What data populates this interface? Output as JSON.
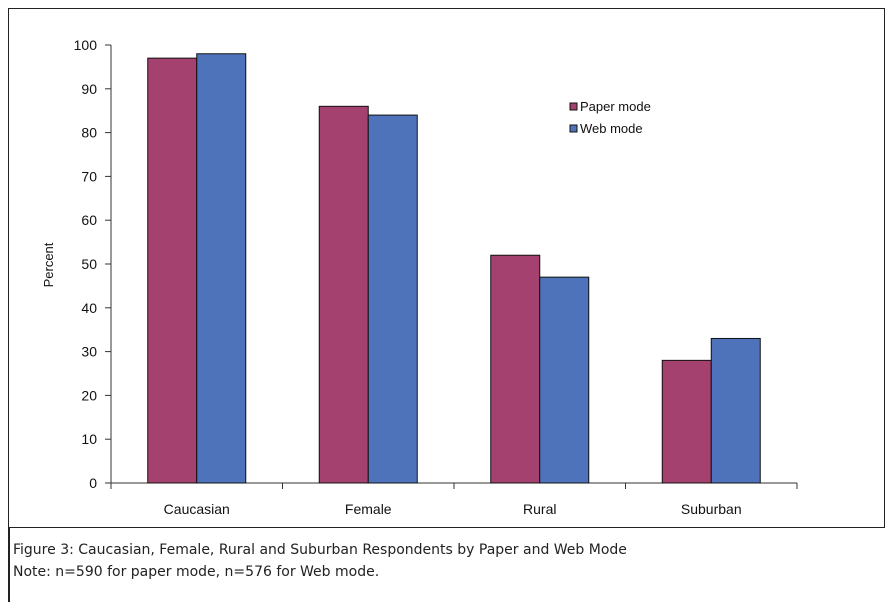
{
  "chart_data": {
    "type": "bar",
    "categories": [
      "Caucasian",
      "Female",
      "Rural",
      "Suburban"
    ],
    "series": [
      {
        "name": "Paper mode",
        "color": "#a5416f",
        "values": [
          97,
          86,
          52,
          28
        ]
      },
      {
        "name": "Web mode",
        "color": "#4f73bb",
        "values": [
          98,
          84,
          47,
          33
        ]
      }
    ],
    "ylabel": "Percent",
    "xlabel": "",
    "ylim": [
      0,
      100
    ],
    "yticks": [
      "0",
      "10",
      "20",
      "30",
      "40",
      "50",
      "60",
      "70",
      "80",
      "90",
      "100"
    ],
    "grid": false,
    "legend_position": "top-right"
  },
  "caption": {
    "figure_line": "Figure 3: Caucasian, Female, Rural and Suburban Respondents by Paper and Web Mode",
    "note_line": "Note:  n=590 for paper mode, n=576 for Web mode."
  }
}
